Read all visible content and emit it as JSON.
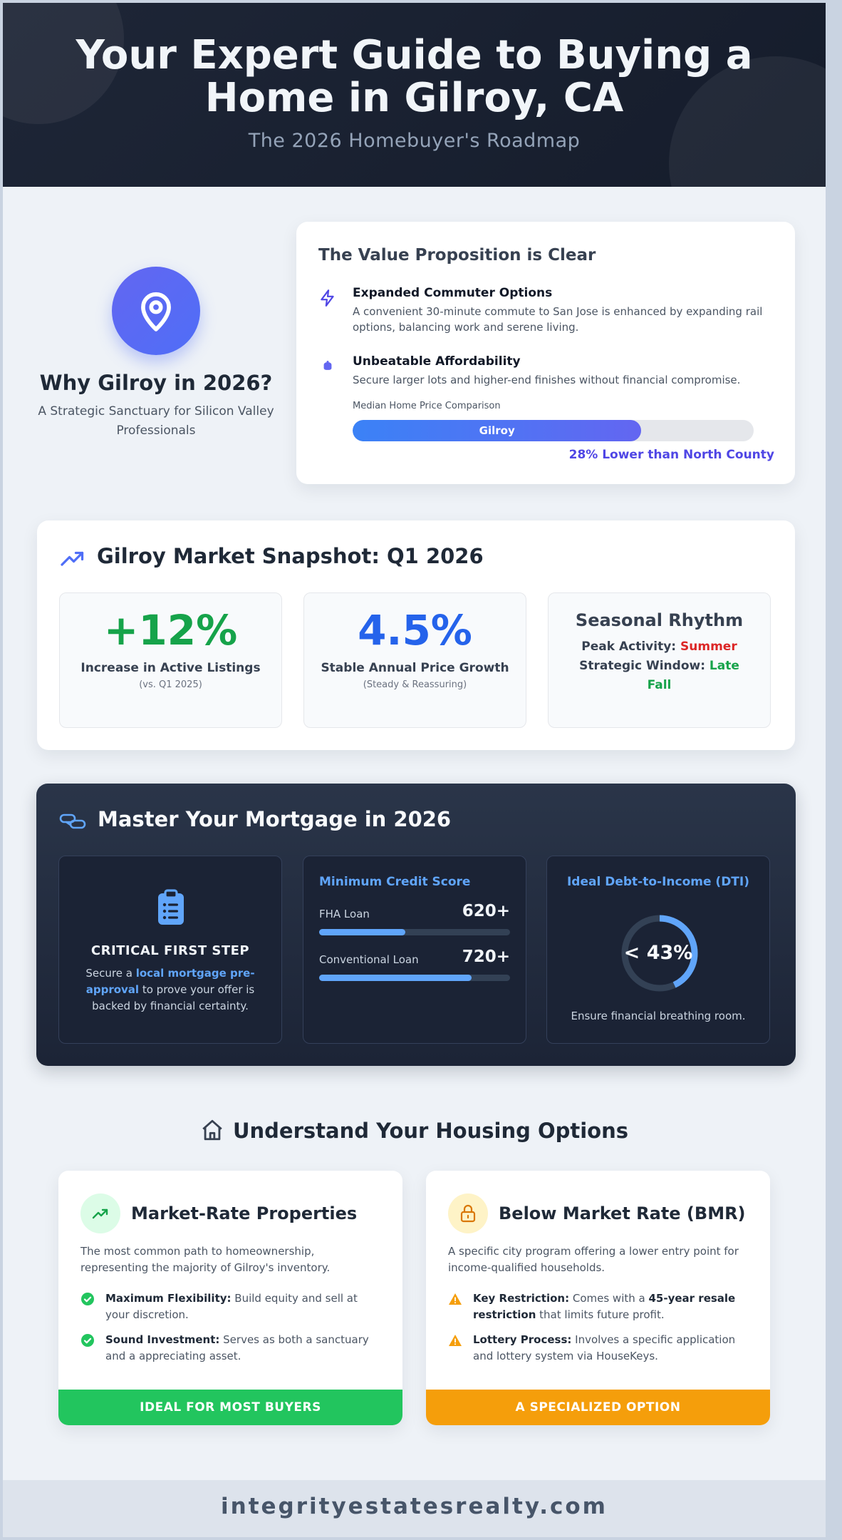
{
  "header": {
    "title": "Your Expert Guide to Buying a Home in Gilroy, CA",
    "subtitle": "The 2026 Homebuyer's Roadmap"
  },
  "why": {
    "icon": "map-pin-icon",
    "title": "Why Gilroy in 2026?",
    "tagline": "A Strategic Sanctuary for Silicon Valley Professionals"
  },
  "value": {
    "title": "The Value Proposition is Clear",
    "items": [
      {
        "icon": "lightning-icon",
        "title": "Expanded Commuter Options",
        "text": "A convenient 30-minute commute to San Jose is enhanced by expanding rail options, balancing work and serene living."
      },
      {
        "icon": "piggy-bank-icon",
        "title": "Unbeatable Affordability",
        "text": "Secure larger lots and higher-end finishes without financial compromise."
      }
    ],
    "comparison": {
      "caption": "Median Home Price Comparison",
      "bar_label": "Gilroy",
      "fill_percent": 72,
      "note": "28% Lower than North County"
    }
  },
  "snapshot": {
    "icon": "trending-up-icon",
    "title": "Gilroy Market Snapshot: Q1 2026",
    "stats": [
      {
        "value": "+12%",
        "label": "Increase in Active Listings",
        "note": "(vs. Q1 2025)",
        "color": "#16a34a"
      },
      {
        "value": "4.5%",
        "label": "Stable Annual Price Growth",
        "note": "(Steady & Reassuring)",
        "color": "#2563eb"
      }
    ],
    "season": {
      "title": "Seasonal Rhythm",
      "peak_label": "Peak Activity:",
      "peak_value": "Summer",
      "window_label": "Strategic Window:",
      "window_value": "Late Fall"
    }
  },
  "mortgage": {
    "icon": "handshake-icon",
    "title": "Master Your Mortgage in 2026",
    "first_step": {
      "icon": "clipboard-icon",
      "title": "CRITICAL FIRST STEP",
      "pre": "Secure a ",
      "highlight": "local mortgage pre-approval",
      "post": " to prove your offer is backed by financial certainty."
    },
    "credit": {
      "title": "Minimum Credit Score",
      "loans": [
        {
          "name": "FHA Loan",
          "score": "620+",
          "fill_percent": 45
        },
        {
          "name": "Conventional Loan",
          "score": "720+",
          "fill_percent": 80
        }
      ]
    },
    "dti": {
      "title": "Ideal Debt-to-Income (DTI)",
      "value": "< 43%",
      "fraction": 0.43,
      "note": "Ensure financial breathing room."
    }
  },
  "housing": {
    "icon": "home-icon",
    "title": "Understand Your Housing Options",
    "options": [
      {
        "icon": "trending-up-icon",
        "title": "Market-Rate Properties",
        "desc": "The most common path to homeownership, representing the majority of Gilroy's inventory.",
        "points": [
          {
            "bold": "Maximum Flexibility:",
            "text": " Build equity and sell at your discretion."
          },
          {
            "bold": "Sound Investment:",
            "text": " Serves as both a sanctuary and a appreciating asset."
          }
        ],
        "band": "IDEAL FOR MOST BUYERS",
        "color": "#22c55e"
      },
      {
        "icon": "lock-icon",
        "title": "Below Market Rate (BMR)",
        "desc": "A specific city program offering a lower entry point for income-qualified households.",
        "points": [
          {
            "bold": "Key Restriction:",
            "text": " Comes with a ",
            "bold2": "45-year resale restriction",
            "text2": " that limits future profit."
          },
          {
            "bold": "Lottery Process:",
            "text": " Involves a specific application and lottery system via HouseKeys."
          }
        ],
        "band": "A SPECIALIZED OPTION",
        "color": "#f59e0b"
      }
    ]
  },
  "footer": {
    "site": "integrityestatesrealty.com"
  }
}
